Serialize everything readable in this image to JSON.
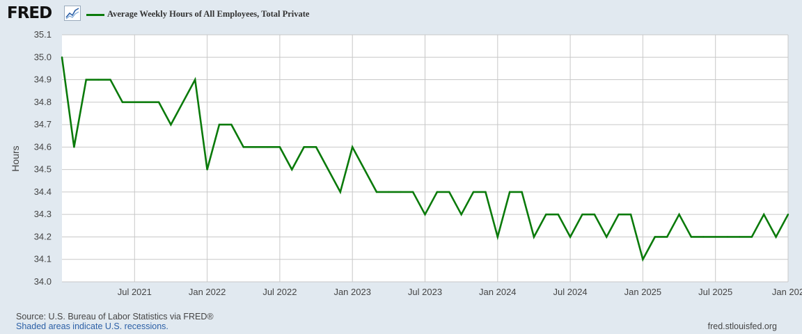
{
  "brand": {
    "logo_text": "FRED",
    "logo_icon": "line-chart-icon"
  },
  "colors": {
    "series": "#0a7a0a",
    "background": "#e1e9f0",
    "plot": "#ffffff",
    "grid": "#c8c8c8"
  },
  "chart_data": {
    "type": "line",
    "ylabel": "Hours",
    "xlabel": "",
    "ylim": [
      34.0,
      35.1
    ],
    "yticks": [
      "35.1",
      "35.0",
      "34.9",
      "34.8",
      "34.7",
      "34.6",
      "34.5",
      "34.4",
      "34.3",
      "34.2",
      "34.1",
      "34.0"
    ],
    "xticks": [
      "Jul 2021",
      "Jan 2022",
      "Jul 2022",
      "Jan 2023",
      "Jul 2023",
      "Jan 2024",
      "Jul 2024",
      "Jan 2025",
      "Jul 2025",
      "Jan 202"
    ],
    "grid": true,
    "legend_position": "top-left",
    "series": [
      {
        "name": "Average Weekly Hours of All Employees, Total Private",
        "x": [
          "2021-01",
          "2021-02",
          "2021-03",
          "2021-04",
          "2021-05",
          "2021-06",
          "2021-07",
          "2021-08",
          "2021-09",
          "2021-10",
          "2021-11",
          "2021-12",
          "2022-01",
          "2022-02",
          "2022-03",
          "2022-04",
          "2022-05",
          "2022-06",
          "2022-07",
          "2022-08",
          "2022-09",
          "2022-10",
          "2022-11",
          "2022-12",
          "2023-01",
          "2023-02",
          "2023-03",
          "2023-04",
          "2023-05",
          "2023-06",
          "2023-07",
          "2023-08",
          "2023-09",
          "2023-10",
          "2023-11",
          "2023-12",
          "2024-01",
          "2024-02",
          "2024-03",
          "2024-04",
          "2024-05",
          "2024-06",
          "2024-07",
          "2024-08",
          "2024-09",
          "2024-10",
          "2024-11",
          "2024-12",
          "2025-01",
          "2025-02",
          "2025-03",
          "2025-04",
          "2025-05",
          "2025-06",
          "2025-07",
          "2025-08",
          "2025-09",
          "2025-10",
          "2025-11",
          "2025-12",
          "2026-01"
        ],
        "y": [
          35.0,
          34.6,
          34.9,
          34.9,
          34.9,
          34.8,
          34.8,
          34.8,
          34.8,
          34.7,
          34.8,
          34.9,
          34.5,
          34.7,
          34.7,
          34.6,
          34.6,
          34.6,
          34.6,
          34.5,
          34.6,
          34.6,
          34.5,
          34.4,
          34.6,
          34.5,
          34.4,
          34.4,
          34.4,
          34.4,
          34.3,
          34.4,
          34.4,
          34.3,
          34.4,
          34.4,
          34.2,
          34.4,
          34.4,
          34.2,
          34.3,
          34.3,
          34.2,
          34.3,
          34.3,
          34.2,
          34.3,
          34.3,
          34.1,
          34.2,
          34.2,
          34.3,
          34.2,
          34.2,
          34.2,
          34.2,
          34.2,
          34.2,
          34.3,
          34.2,
          34.3
        ]
      }
    ]
  },
  "footer": {
    "source": "Source: U.S. Bureau of Labor Statistics via FRED®",
    "note": "Shaded areas indicate U.S. recessions.",
    "url": "fred.stlouisfed.org"
  }
}
